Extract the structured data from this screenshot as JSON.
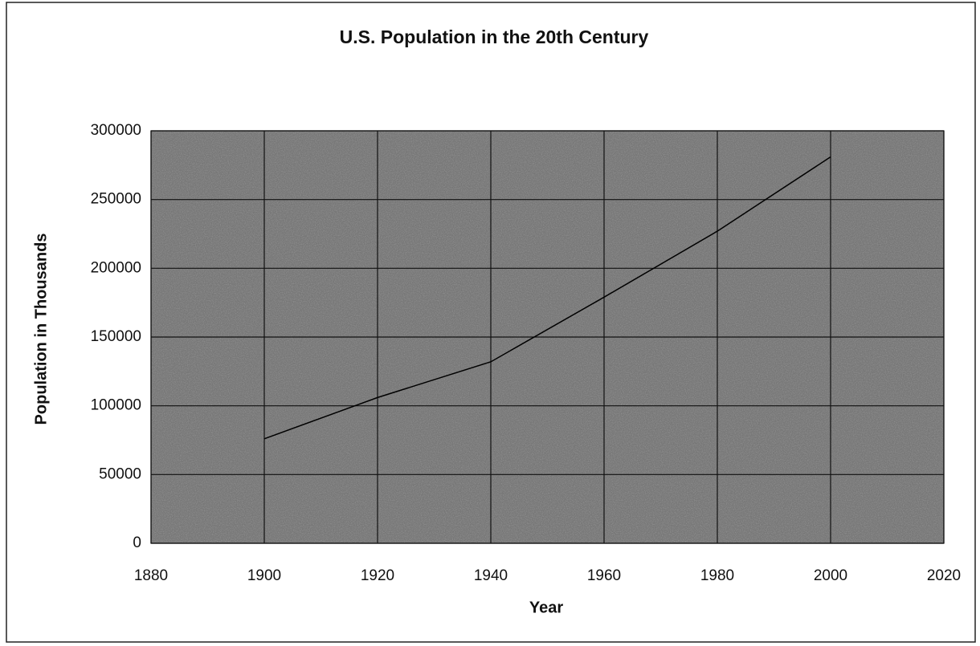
{
  "chart_data": {
    "type": "line",
    "title": "U.S. Population in the 20th Century",
    "x_label": "Year",
    "y_label": "Population in Thousands",
    "x": [
      1900,
      1920,
      1940,
      1960,
      1980,
      2000
    ],
    "values": [
      76000,
      106000,
      132000,
      179000,
      227000,
      281000
    ],
    "color": "#000000",
    "xlim": [
      1880,
      2020
    ],
    "xticks": [
      1880,
      1900,
      1920,
      1940,
      1960,
      1980,
      2000,
      2020
    ],
    "ylim": [
      0,
      300000
    ],
    "yticks": [
      0,
      50000,
      100000,
      150000,
      200000,
      250000,
      300000
    ],
    "grid": true
  }
}
